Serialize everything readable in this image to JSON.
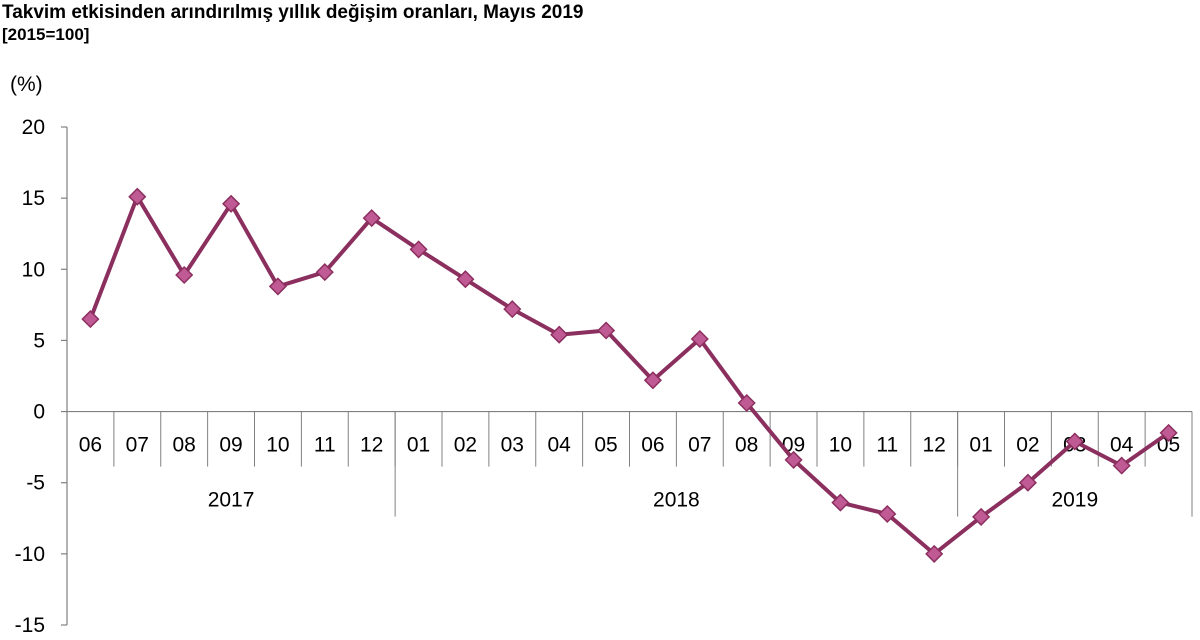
{
  "chart_data": {
    "type": "line",
    "title": "Takvim etkisinden arındırılmış yıllık değişim oranları, Mayıs 2019",
    "subtitle": "[2015=100]",
    "ylabel": "(%)",
    "xlabel": "",
    "ylim": [
      -15,
      20
    ],
    "yticks": [
      20,
      15,
      10,
      5,
      0,
      -5,
      -10,
      -15
    ],
    "grid": false,
    "legend": "none",
    "categories": [
      "06",
      "07",
      "08",
      "09",
      "10",
      "11",
      "12",
      "01",
      "02",
      "03",
      "04",
      "05",
      "06",
      "07",
      "08",
      "09",
      "10",
      "11",
      "12",
      "01",
      "02",
      "03",
      "04",
      "05"
    ],
    "year_groups": [
      {
        "label": "2017",
        "start": 0,
        "count": 7
      },
      {
        "label": "2018",
        "start": 7,
        "count": 12
      },
      {
        "label": "2019",
        "start": 19,
        "count": 5
      }
    ],
    "series": [
      {
        "color": "#8B2F5F",
        "marker_color": "#C05A94",
        "values": [
          6.5,
          15.1,
          9.6,
          14.6,
          8.8,
          9.8,
          13.6,
          11.4,
          9.3,
          7.2,
          5.4,
          5.7,
          2.2,
          5.1,
          0.6,
          -3.4,
          -6.4,
          -7.2,
          -10.0,
          -7.4,
          -5.0,
          -2.1,
          -3.8,
          -1.5
        ]
      }
    ]
  }
}
